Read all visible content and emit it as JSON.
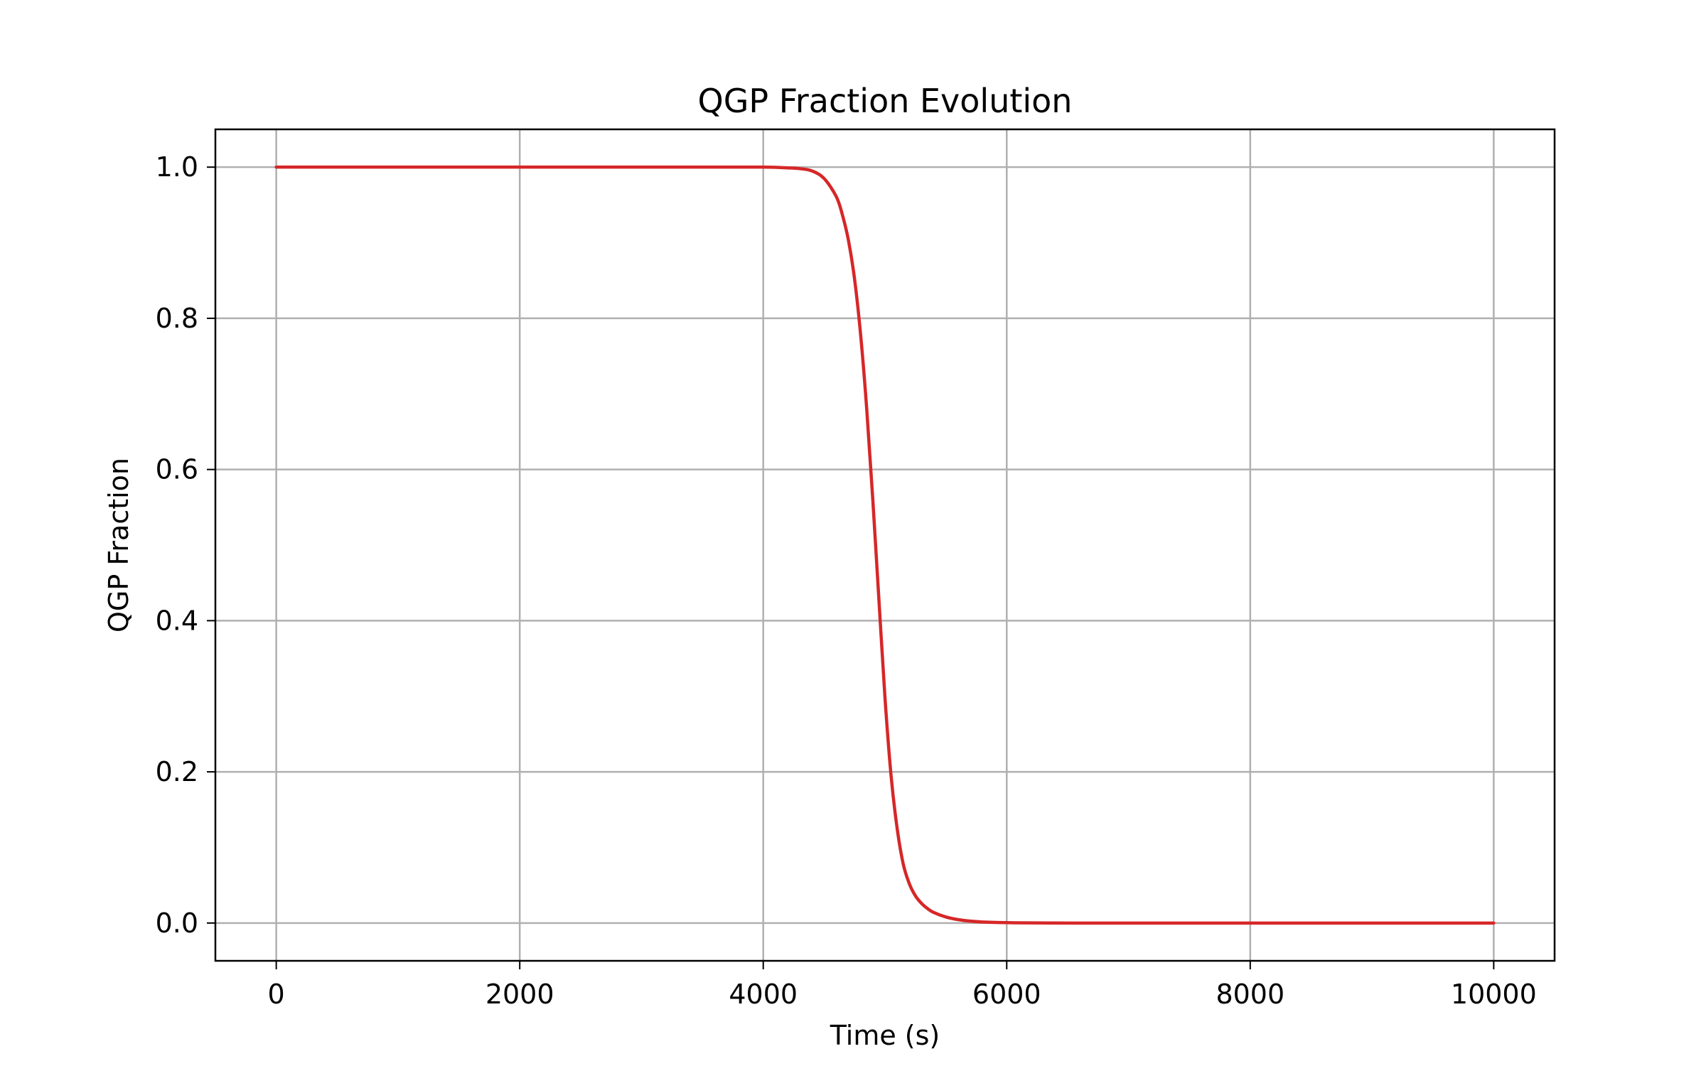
{
  "chart_data": {
    "type": "line",
    "title": "QGP Fraction Evolution",
    "xlabel": "Time (s)",
    "ylabel": "QGP Fraction",
    "xlim": [
      -500,
      10500
    ],
    "ylim": [
      -0.05,
      1.05
    ],
    "xticks": [
      0,
      2000,
      4000,
      6000,
      8000,
      10000
    ],
    "xtick_labels": [
      "0",
      "2000",
      "4000",
      "6000",
      "8000",
      "10000"
    ],
    "yticks": [
      0.0,
      0.2,
      0.4,
      0.6,
      0.8,
      1.0
    ],
    "ytick_labels": [
      "0.0",
      "0.2",
      "0.4",
      "0.6",
      "0.8",
      "1.0"
    ],
    "grid": true,
    "series": [
      {
        "color": "#d62728",
        "x": [
          0,
          500,
          1000,
          1500,
          2000,
          2500,
          3000,
          3500,
          4000,
          4200,
          4300,
          4400,
          4500,
          4600,
          4650,
          4700,
          4750,
          4800,
          4850,
          4900,
          4950,
          5000,
          5050,
          5100,
          5150,
          5200,
          5250,
          5300,
          5350,
          5400,
          5500,
          5600,
          5700,
          5800,
          6000,
          6200,
          6500,
          7000,
          8000,
          9000,
          10000
        ],
        "y": [
          1.0,
          1.0,
          1.0,
          1.0,
          1.0,
          1.0,
          1.0,
          1.0,
          1.0,
          0.999,
          0.998,
          0.995,
          0.985,
          0.961,
          0.937,
          0.903,
          0.852,
          0.778,
          0.68,
          0.56,
          0.428,
          0.298,
          0.195,
          0.125,
          0.078,
          0.052,
          0.036,
          0.026,
          0.019,
          0.014,
          0.008,
          0.0045,
          0.0025,
          0.0014,
          0.0005,
          0.0002,
          0.0,
          0.0,
          0.0,
          0.0,
          0.0
        ]
      }
    ]
  }
}
